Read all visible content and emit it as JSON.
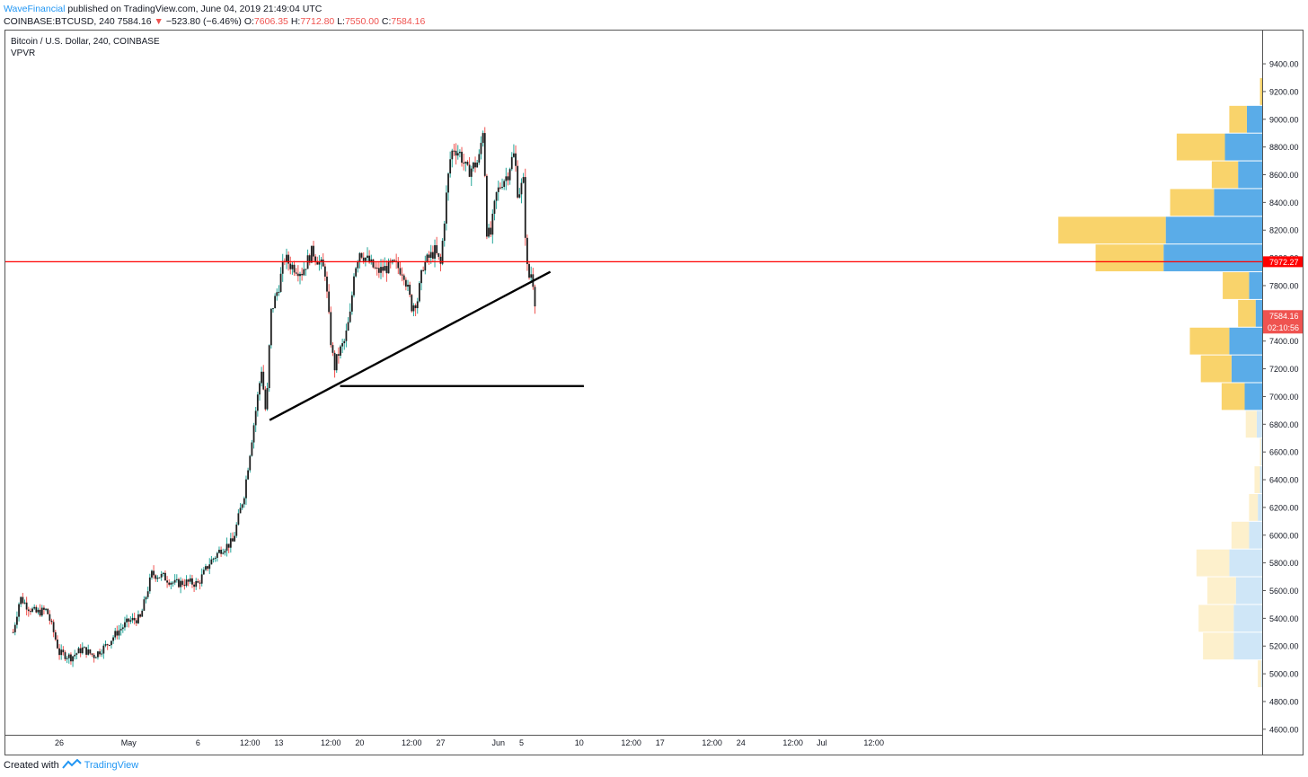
{
  "header": {
    "author": "WaveFinancial",
    "published": "published on TradingView.com, June 04, 2019 21:49:04 UTC",
    "symbol": "COINBASE:BTCUSD, 240",
    "last_price": "7584.16",
    "change": "−523.80 (−6.46%)",
    "o_label": "O:",
    "o_value": "7606.35",
    "h_label": "H:",
    "h_value": "7712.80",
    "l_label": "L:",
    "l_value": "7550.00",
    "c_label": "C:",
    "c_value": "7584.16"
  },
  "legend": {
    "symbol_title": "Bitcoin / U.S. Dollar, 240, COINBASE",
    "indicator": "VPVR"
  },
  "footer": {
    "created_with": "Created with",
    "brand": "TradingView"
  },
  "colors": {
    "up": "#26a69a",
    "down": "#ef5350",
    "body": "#1e1e1e",
    "red_line": "#ff0000",
    "vp_up": "#f9d36b",
    "vp_down": "#5aace8",
    "vp_up_light": "#fdf0cc",
    "vp_down_light": "#cfe6f7"
  },
  "chart_data": {
    "type": "candlestick",
    "title": "Bitcoin / U.S. Dollar, 240, COINBASE",
    "ylim": [
      4560,
      9640
    ],
    "y_ticks": [
      "4600.00",
      "4800.00",
      "5000.00",
      "5200.00",
      "5400.00",
      "5600.00",
      "5800.00",
      "6000.00",
      "6200.00",
      "6400.00",
      "6600.00",
      "6800.00",
      "7000.00",
      "7200.00",
      "7400.00",
      "7600.00",
      "7800.00",
      "8000.00",
      "8200.00",
      "8400.00",
      "8600.00",
      "8800.00",
      "9000.00",
      "9200.00",
      "9400.00"
    ],
    "x_ticks": [
      {
        "label": "26",
        "x": -0.5
      },
      {
        "label": "May",
        "x": 5.5
      },
      {
        "label": "6",
        "x": 11.5
      },
      {
        "label": "12:00",
        "x": 16.0
      },
      {
        "label": "13",
        "x": 18.5
      },
      {
        "label": "12:00",
        "x": 23.0
      },
      {
        "label": "20",
        "x": 25.5
      },
      {
        "label": "12:00",
        "x": 30.0
      },
      {
        "label": "27",
        "x": 32.5
      },
      {
        "label": "Jun",
        "x": 37.5
      },
      {
        "label": "5",
        "x": 39.5
      },
      {
        "label": "10",
        "x": 44.5
      },
      {
        "label": "12:00",
        "x": 49.0
      },
      {
        "label": "17",
        "x": 51.5
      },
      {
        "label": "12:00",
        "x": 56.0
      },
      {
        "label": "24",
        "x": 58.5
      },
      {
        "label": "12:00",
        "x": 63.0
      },
      {
        "label": "Jul",
        "x": 65.5
      },
      {
        "label": "12:00",
        "x": 70.0
      }
    ],
    "x_domain": [
      -4.5,
      73.75
    ],
    "price_lines": [
      {
        "label": "7972.27",
        "value": 7972.27,
        "color": "#ff0000"
      },
      {
        "label": "7584.16",
        "value": 7584.16,
        "color": "#ef5350"
      }
    ],
    "countdown": "02:10:56",
    "anchors": [
      [
        -4.5,
        5300
      ],
      [
        -3.9,
        5550
      ],
      [
        -3.2,
        5480
      ],
      [
        -2.5,
        5440
      ],
      [
        -1.6,
        5460
      ],
      [
        -1.0,
        5300
      ],
      [
        -0.5,
        5150
      ],
      [
        0.5,
        5120
      ],
      [
        1.5,
        5180
      ],
      [
        2.5,
        5130
      ],
      [
        3.5,
        5200
      ],
      [
        4.5,
        5300
      ],
      [
        5.5,
        5380
      ],
      [
        6.5,
        5400
      ],
      [
        7.5,
        5720
      ],
      [
        8.5,
        5700
      ],
      [
        9.5,
        5650
      ],
      [
        10.5,
        5660
      ],
      [
        11.5,
        5650
      ],
      [
        12.5,
        5800
      ],
      [
        13.5,
        5900
      ],
      [
        14.5,
        5950
      ],
      [
        15.5,
        6300
      ],
      [
        16.5,
        6900
      ],
      [
        17.0,
        7200
      ],
      [
        17.4,
        6850
      ],
      [
        17.8,
        7600
      ],
      [
        18.5,
        7800
      ],
      [
        19.0,
        8000
      ],
      [
        19.5,
        7950
      ],
      [
        20.5,
        7900
      ],
      [
        21.4,
        8050
      ],
      [
        22.5,
        7900
      ],
      [
        23.0,
        7400
      ],
      [
        23.3,
        7200
      ],
      [
        23.6,
        7300
      ],
      [
        24.2,
        7400
      ],
      [
        24.7,
        7600
      ],
      [
        25.0,
        7900
      ],
      [
        25.5,
        8050
      ],
      [
        26.5,
        7950
      ],
      [
        27.0,
        7900
      ],
      [
        28.5,
        7950
      ],
      [
        29.3,
        7900
      ],
      [
        30.0,
        7650
      ],
      [
        30.5,
        7700
      ],
      [
        31.0,
        7950
      ],
      [
        32.0,
        8050
      ],
      [
        32.5,
        7950
      ],
      [
        33.0,
        8450
      ],
      [
        33.3,
        8700
      ],
      [
        33.6,
        8800
      ],
      [
        34.2,
        8750
      ],
      [
        34.8,
        8620
      ],
      [
        35.2,
        8650
      ],
      [
        35.8,
        8700
      ],
      [
        36.2,
        8950
      ],
      [
        36.5,
        8200
      ],
      [
        36.8,
        8150
      ],
      [
        37.3,
        8450
      ],
      [
        37.8,
        8550
      ],
      [
        38.3,
        8600
      ],
      [
        38.6,
        8700
      ],
      [
        38.9,
        8750
      ],
      [
        39.2,
        8450
      ],
      [
        39.4,
        8500
      ],
      [
        39.7,
        8550
      ],
      [
        39.9,
        8000
      ],
      [
        40.1,
        7850
      ],
      [
        40.4,
        7900
      ],
      [
        40.6,
        7750
      ],
      [
        40.8,
        7584
      ]
    ],
    "trendlines": [
      {
        "from": {
          "x": 17.7,
          "y": 6830
        },
        "to": {
          "x": 42.0,
          "y": 7900
        },
        "color": "#000000"
      },
      {
        "from": {
          "x": 23.8,
          "y": 7075
        },
        "to": {
          "x": 44.9,
          "y": 7075
        },
        "color": "#000000"
      }
    ],
    "volume_profile": [
      {
        "price": 5000,
        "up": 3,
        "down": 1,
        "faded": true
      },
      {
        "price": 5200,
        "up": 28,
        "down": 26,
        "faded": true
      },
      {
        "price": 5400,
        "up": 32,
        "down": 26,
        "faded": true
      },
      {
        "price": 5600,
        "up": 26,
        "down": 24,
        "faded": true
      },
      {
        "price": 5800,
        "up": 30,
        "down": 30,
        "faded": true
      },
      {
        "price": 6000,
        "up": 16,
        "down": 12,
        "faded": true
      },
      {
        "price": 6200,
        "up": 8,
        "down": 4,
        "faded": true
      },
      {
        "price": 6400,
        "up": 5,
        "down": 2,
        "faded": true
      },
      {
        "price": 6600,
        "up": 1,
        "down": 1,
        "faded": true
      },
      {
        "price": 6800,
        "up": 10,
        "down": 5,
        "faded": true
      },
      {
        "price": 7000,
        "up": 21,
        "down": 16
      },
      {
        "price": 7200,
        "up": 28,
        "down": 28
      },
      {
        "price": 7400,
        "up": 36,
        "down": 30
      },
      {
        "price": 7600,
        "up": 16,
        "down": 6
      },
      {
        "price": 7800,
        "up": 24,
        "down": 12
      },
      {
        "price": 8000,
        "up": 62,
        "down": 90
      },
      {
        "price": 8200,
        "up": 98,
        "down": 88
      },
      {
        "price": 8400,
        "up": 40,
        "down": 44
      },
      {
        "price": 8600,
        "up": 24,
        "down": 22
      },
      {
        "price": 8800,
        "up": 44,
        "down": 34
      },
      {
        "price": 9000,
        "up": 16,
        "down": 14
      },
      {
        "price": 9200,
        "up": 2,
        "down": 0
      }
    ]
  }
}
